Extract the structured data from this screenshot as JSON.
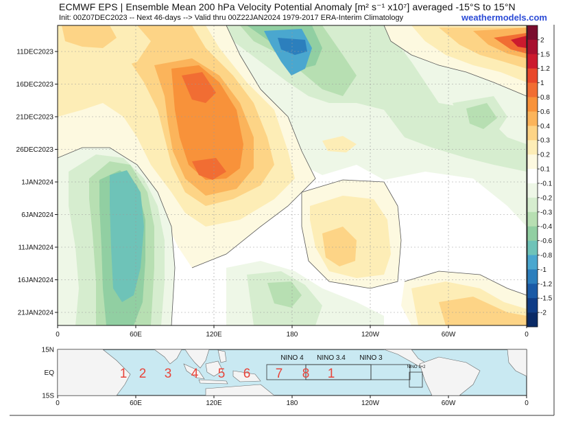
{
  "header": {
    "title": "ECMWF EPS | Ensemble Mean 200 hPa Velocity Potential Anomaly [m² s⁻¹ x10⁷] averaged -15°S to 15°N",
    "subtitle": "Init: 00Z07DEC2023 -- Next 46-days --> Valid thru 00Z22JAN2024 1979-2017 ERA-Interim Climatology",
    "brand": "weathermodels.com"
  },
  "chart_data": {
    "type": "heatmap",
    "x_tick_labels": [
      "0",
      "60E",
      "120E",
      "180",
      "120W",
      "60W",
      "0"
    ],
    "y_tick_labels": [
      "11DEC2023",
      "16DEC2023",
      "21DEC2023",
      "26DEC2023",
      "1JAN2024",
      "6JAN2024",
      "11JAN2024",
      "16JAN2024",
      "21JAN2024"
    ],
    "colorbar": {
      "levels": [
        "2",
        "1.5",
        "1.2",
        "1",
        "0.8",
        "0.6",
        "0.4",
        "0.3",
        "0.2",
        "0.1",
        "-0.1",
        "-0.2",
        "-0.3",
        "-0.4",
        "-0.6",
        "-0.8",
        "-1",
        "-1.2",
        "-1.5",
        "-2"
      ],
      "colors": [
        "#7a0d2e",
        "#a8102f",
        "#cc1a2e",
        "#e8472a",
        "#f16d33",
        "#f8923a",
        "#fbb45b",
        "#fdd486",
        "#fdedb6",
        "#fdf9e0",
        "#ffffff",
        "#eef7e7",
        "#d6edcf",
        "#b7dfb2",
        "#91cfa2",
        "#6ec3b8",
        "#4aa7cf",
        "#2c7fbd",
        "#1a5aa6",
        "#0f3c86",
        "#0a2a66"
      ]
    },
    "features": [
      {
        "name": "positive anomaly core",
        "lon_range": [
          80,
          140
        ],
        "period": "11DEC2023 - 3JAN2024",
        "max": 0.8
      },
      {
        "name": "negative anomaly core",
        "lon_range": [
          35,
          75
        ],
        "period": "26DEC2023 - 21JAN2024",
        "min": -0.8
      },
      {
        "name": "negative anomaly",
        "lon_range": [
          140,
          190
        ],
        "period": "7DEC2023 - 20DEC2023",
        "min": -1.2
      },
      {
        "name": "positive anomaly",
        "lon_range": [
          280,
          360
        ],
        "period": "7DEC2023 - 15DEC2023",
        "max": 1.5
      },
      {
        "name": "positive anomaly",
        "lon_range": [
          190,
          260
        ],
        "period": "29DEC2023 - 16JAN2024",
        "max": 0.3
      }
    ]
  },
  "map": {
    "lat_labels": [
      "15N",
      "EQ",
      "15S"
    ],
    "x_tick_labels": [
      "0",
      "60E",
      "120E",
      "180",
      "120W",
      "60W",
      "0"
    ],
    "nino_labels": [
      "NINO 4",
      "NINO 3.4",
      "NINO 3",
      "NINO 1+2"
    ],
    "phase_labels": [
      "1",
      "2",
      "3",
      "4",
      "5",
      "6",
      "7",
      "8",
      "1"
    ],
    "colors": {
      "ocean": "#c9e9f2",
      "land": "#f4f4f4",
      "phase": "#e8443a"
    }
  }
}
